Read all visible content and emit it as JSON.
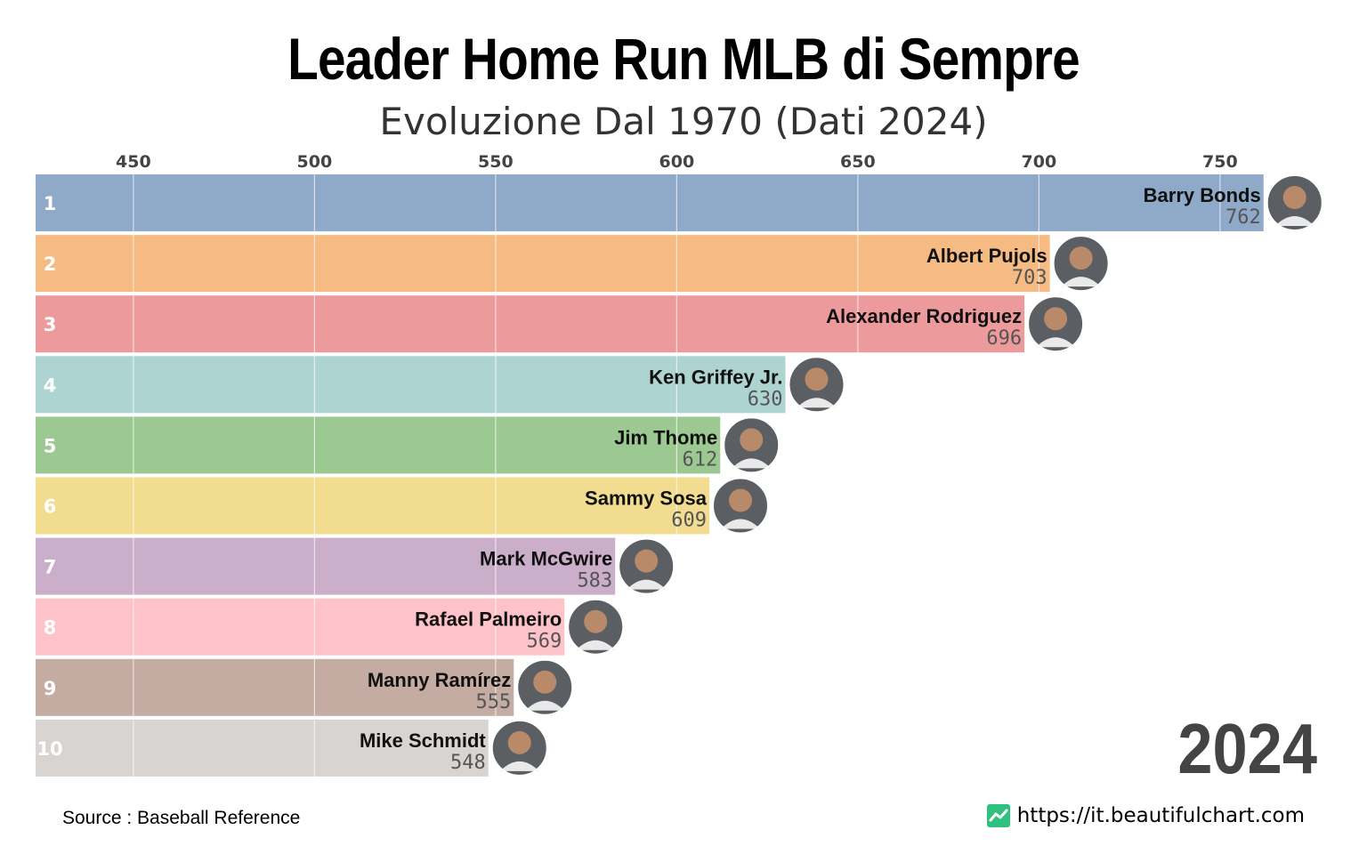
{
  "title": "Leader Home Run MLB di Sempre",
  "subtitle": "Evoluzione Dal 1970 (Dati 2024)",
  "year": "2024",
  "source": "Source : Baseball Reference",
  "site_url": "https://it.beautifulchart.com",
  "site_icon": "trend-line-icon",
  "chart_data": {
    "type": "bar",
    "orientation": "horizontal",
    "xlim": [
      423,
      762
    ],
    "x_ticks": [
      450,
      500,
      550,
      600,
      650,
      700,
      750
    ],
    "grid": true,
    "bars": [
      {
        "rank": "1",
        "name": "Barry Bonds",
        "value": 762,
        "color": "#8fa9c8"
      },
      {
        "rank": "2",
        "name": "Albert Pujols",
        "value": 703,
        "color": "#f5bb83"
      },
      {
        "rank": "3",
        "name": "Alexander Rodriguez",
        "value": 696,
        "color": "#ec9a9c"
      },
      {
        "rank": "4",
        "name": "Ken Griffey Jr.",
        "value": 630,
        "color": "#aed4d1"
      },
      {
        "rank": "5",
        "name": "Jim Thome",
        "value": 612,
        "color": "#9cc992"
      },
      {
        "rank": "6",
        "name": "Sammy Sosa",
        "value": 609,
        "color": "#f2dc90"
      },
      {
        "rank": "7",
        "name": "Mark McGwire",
        "value": 583,
        "color": "#cbaec9"
      },
      {
        "rank": "8",
        "name": "Rafael Palmeiro",
        "value": 569,
        "color": "#fdc3c8"
      },
      {
        "rank": "9",
        "name": "Manny Ramírez",
        "value": 555,
        "color": "#c4aca2"
      },
      {
        "rank": "10",
        "name": "Mike Schmidt",
        "value": 548,
        "color": "#d8d4d1"
      }
    ]
  }
}
